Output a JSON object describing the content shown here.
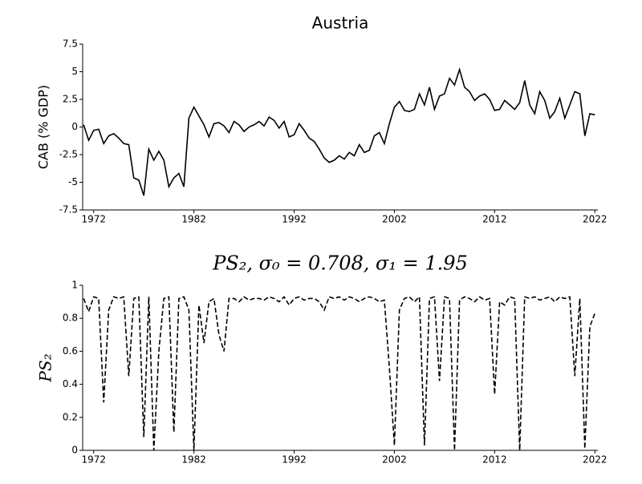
{
  "chart_data": [
    {
      "type": "line",
      "title": "Austria",
      "y_label": "CAB (% GDP)",
      "x": [
        1971,
        1971.5,
        1972,
        1972.5,
        1973,
        1973.5,
        1974,
        1974.5,
        1975,
        1975.5,
        1976,
        1976.5,
        1977,
        1977.5,
        1978,
        1978.5,
        1979,
        1979.5,
        1980,
        1980.5,
        1981,
        1981.5,
        1982,
        1982.5,
        1983,
        1983.5,
        1984,
        1984.5,
        1985,
        1985.5,
        1986,
        1986.5,
        1987,
        1987.5,
        1988,
        1988.5,
        1989,
        1989.5,
        1990,
        1990.5,
        1991,
        1991.5,
        1992,
        1992.5,
        1993,
        1993.5,
        1994,
        1994.5,
        1995,
        1995.5,
        1996,
        1996.5,
        1997,
        1997.5,
        1998,
        1998.5,
        1999,
        1999.5,
        2000,
        2000.5,
        2001,
        2001.5,
        2002,
        2002.5,
        2003,
        2003.5,
        2004,
        2004.5,
        2005,
        2005.5,
        2006,
        2006.5,
        2007,
        2007.5,
        2008,
        2008.5,
        2009,
        2009.5,
        2010,
        2010.5,
        2011,
        2011.5,
        2012,
        2012.5,
        2013,
        2013.5,
        2014,
        2014.5,
        2015,
        2015.5,
        2016,
        2016.5,
        2017,
        2017.5,
        2018,
        2018.5,
        2019,
        2019.5,
        2020,
        2020.5,
        2021,
        2021.5,
        2022
      ],
      "series": [
        {
          "name": "CAB",
          "color": "#000000",
          "dash": false,
          "values": [
            0.2,
            -1.2,
            -0.3,
            -0.2,
            -1.5,
            -0.8,
            -0.6,
            -1.0,
            -1.5,
            -1.6,
            -4.6,
            -4.8,
            -6.2,
            -2.0,
            -3.0,
            -2.2,
            -3.0,
            -5.4,
            -4.6,
            -4.2,
            -5.4,
            0.8,
            1.8,
            1.0,
            0.2,
            -0.9,
            0.3,
            0.4,
            0.1,
            -0.5,
            0.5,
            0.2,
            -0.4,
            0.0,
            0.2,
            0.5,
            0.1,
            0.9,
            0.6,
            -0.1,
            0.5,
            -0.9,
            -0.7,
            0.3,
            -0.3,
            -1.0,
            -1.3,
            -2.0,
            -2.8,
            -3.2,
            -3.0,
            -2.6,
            -2.9,
            -2.3,
            -2.6,
            -1.6,
            -2.3,
            -2.1,
            -0.8,
            -0.5,
            -1.5,
            0.3,
            1.8,
            2.3,
            1.5,
            1.4,
            1.6,
            3.0,
            2.0,
            3.6,
            1.6,
            2.8,
            3.0,
            4.4,
            3.8,
            5.2,
            3.6,
            3.2,
            2.4,
            2.8,
            3.0,
            2.5,
            1.5,
            1.6,
            2.4,
            2.0,
            1.6,
            2.2,
            4.2,
            2.0,
            1.2,
            3.2,
            2.4,
            0.8,
            1.4,
            2.6,
            0.8,
            2.0,
            3.2,
            3.0,
            -0.8,
            1.2,
            1.1
          ]
        }
      ],
      "xlim": [
        1970.9,
        2022.3
      ],
      "xticks": [
        1972,
        1982,
        1992,
        2002,
        2012,
        2022
      ],
      "ylim": [
        -7.5,
        7.5
      ],
      "yticks": [
        -7.5,
        -5,
        -2.5,
        0,
        2.5,
        5,
        7.5
      ]
    },
    {
      "type": "line",
      "title": "PS₂, σ₀ = 0.708, σ₁ = 1.95",
      "y_label": "PS₂",
      "x": [
        1971,
        1971.5,
        1972,
        1972.5,
        1973,
        1973.5,
        1974,
        1974.5,
        1975,
        1975.5,
        1976,
        1976.5,
        1977,
        1977.5,
        1978,
        1978.5,
        1979,
        1979.5,
        1980,
        1980.5,
        1981,
        1981.5,
        1982,
        1982.5,
        1983,
        1983.5,
        1984,
        1984.5,
        1985,
        1985.5,
        1986,
        1986.5,
        1987,
        1987.5,
        1988,
        1988.5,
        1989,
        1989.5,
        1990,
        1990.5,
        1991,
        1991.5,
        1992,
        1992.5,
        1993,
        1993.5,
        1994,
        1994.5,
        1995,
        1995.5,
        1996,
        1996.5,
        1997,
        1997.5,
        1998,
        1998.5,
        1999,
        1999.5,
        2000,
        2000.5,
        2001,
        2001.5,
        2002,
        2002.5,
        2003,
        2003.5,
        2004,
        2004.5,
        2005,
        2005.5,
        2006,
        2006.5,
        2007,
        2007.5,
        2008,
        2008.5,
        2009,
        2009.5,
        2010,
        2010.5,
        2011,
        2011.5,
        2012,
        2012.5,
        2013,
        2013.5,
        2014,
        2014.5,
        2015,
        2015.5,
        2016,
        2016.5,
        2017,
        2017.5,
        2018,
        2018.5,
        2019,
        2019.5,
        2020,
        2020.5,
        2021,
        2021.5,
        2022
      ],
      "series": [
        {
          "name": "PS₂",
          "color": "#000000",
          "dash": true,
          "values": [
            0.92,
            0.84,
            0.93,
            0.92,
            0.29,
            0.85,
            0.93,
            0.92,
            0.93,
            0.45,
            0.92,
            0.93,
            0.08,
            0.93,
            0.0,
            0.6,
            0.92,
            0.93,
            0.11,
            0.92,
            0.93,
            0.85,
            0.0,
            0.88,
            0.65,
            0.9,
            0.92,
            0.7,
            0.6,
            0.92,
            0.92,
            0.9,
            0.93,
            0.91,
            0.92,
            0.92,
            0.91,
            0.93,
            0.92,
            0.9,
            0.93,
            0.88,
            0.92,
            0.93,
            0.91,
            0.92,
            0.92,
            0.9,
            0.85,
            0.93,
            0.92,
            0.93,
            0.91,
            0.93,
            0.92,
            0.9,
            0.92,
            0.93,
            0.92,
            0.9,
            0.91,
            0.5,
            0.03,
            0.85,
            0.92,
            0.93,
            0.9,
            0.93,
            0.03,
            0.92,
            0.93,
            0.42,
            0.93,
            0.92,
            0.0,
            0.91,
            0.93,
            0.92,
            0.9,
            0.93,
            0.91,
            0.92,
            0.34,
            0.9,
            0.88,
            0.93,
            0.92,
            0.0,
            0.93,
            0.92,
            0.93,
            0.91,
            0.92,
            0.93,
            0.9,
            0.93,
            0.92,
            0.93,
            0.45,
            0.92,
            0.01,
            0.75,
            0.83
          ]
        }
      ],
      "xlim": [
        1970.9,
        2022.3
      ],
      "xticks": [
        1972,
        1982,
        1992,
        2002,
        2012,
        2022
      ],
      "ylim": [
        0,
        1
      ],
      "yticks": [
        0,
        0.2,
        0.4,
        0.6,
        0.8,
        1
      ]
    }
  ]
}
